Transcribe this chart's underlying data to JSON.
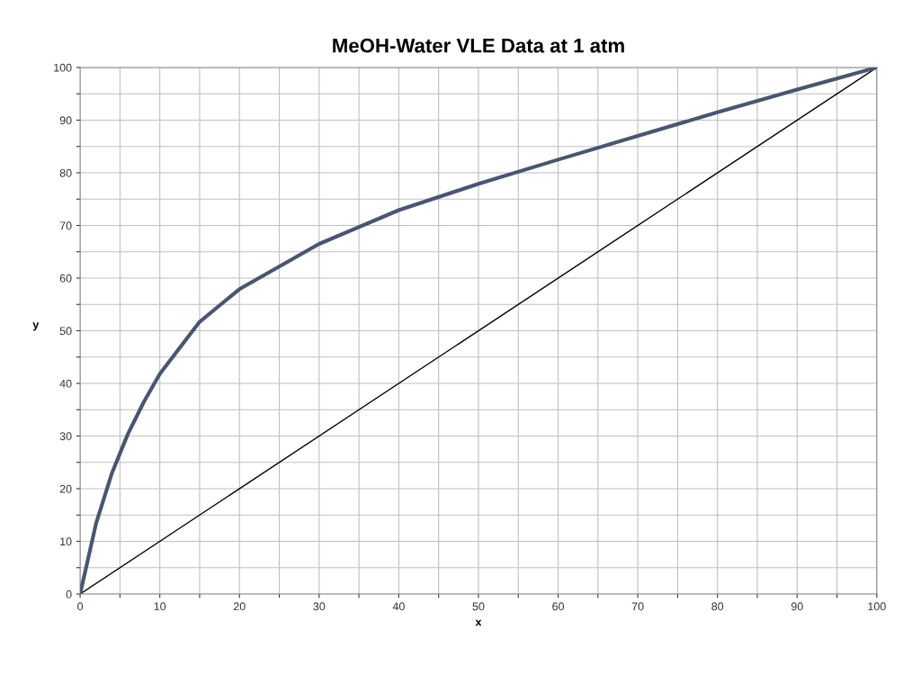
{
  "chart_data": {
    "type": "line",
    "title": "MeOH-Water VLE Data at 1 atm",
    "xlabel": "x",
    "ylabel": "y",
    "xlim": [
      0,
      100
    ],
    "ylim": [
      0,
      100
    ],
    "xticks": [
      0,
      {
        "value": 5,
        "label": null
      },
      10,
      {
        "value": 15,
        "label": null
      },
      20,
      {
        "value": 25,
        "label": null
      },
      30,
      {
        "value": 35,
        "label": null
      },
      40,
      {
        "value": 45,
        "label": null
      },
      50,
      {
        "value": 55,
        "label": null
      },
      60,
      {
        "value": 65,
        "label": null
      },
      70,
      {
        "value": 75,
        "label": null
      },
      80,
      {
        "value": 85,
        "label": null
      },
      90,
      {
        "value": 95,
        "label": null
      },
      100
    ],
    "yticks": [
      0,
      {
        "value": 5,
        "label": null
      },
      10,
      {
        "value": 15,
        "label": null
      },
      20,
      {
        "value": 25,
        "label": null
      },
      30,
      {
        "value": 35,
        "label": null
      },
      40,
      {
        "value": 45,
        "label": null
      },
      50,
      {
        "value": 55,
        "label": null
      },
      60,
      {
        "value": 65,
        "label": null
      },
      70,
      {
        "value": 75,
        "label": null
      },
      80,
      {
        "value": 85,
        "label": null
      },
      90,
      {
        "value": 95,
        "label": null
      },
      100
    ],
    "grid": true,
    "marker": "none",
    "line_style": "solid",
    "series": [
      {
        "color": "#4a5670",
        "x": [
          0,
          2,
          4,
          6,
          8,
          10,
          15,
          20,
          30,
          40,
          50,
          60,
          70,
          80,
          90,
          95,
          100
        ],
        "values": [
          0,
          13.4,
          23,
          30.4,
          36.5,
          41.8,
          51.7,
          57.9,
          66.5,
          72.9,
          77.9,
          82.5,
          87,
          91.5,
          95.8,
          97.9,
          100
        ]
      },
      {
        "color": "#000000",
        "x": [
          0,
          100
        ],
        "values": [
          0,
          100
        ]
      }
    ]
  }
}
